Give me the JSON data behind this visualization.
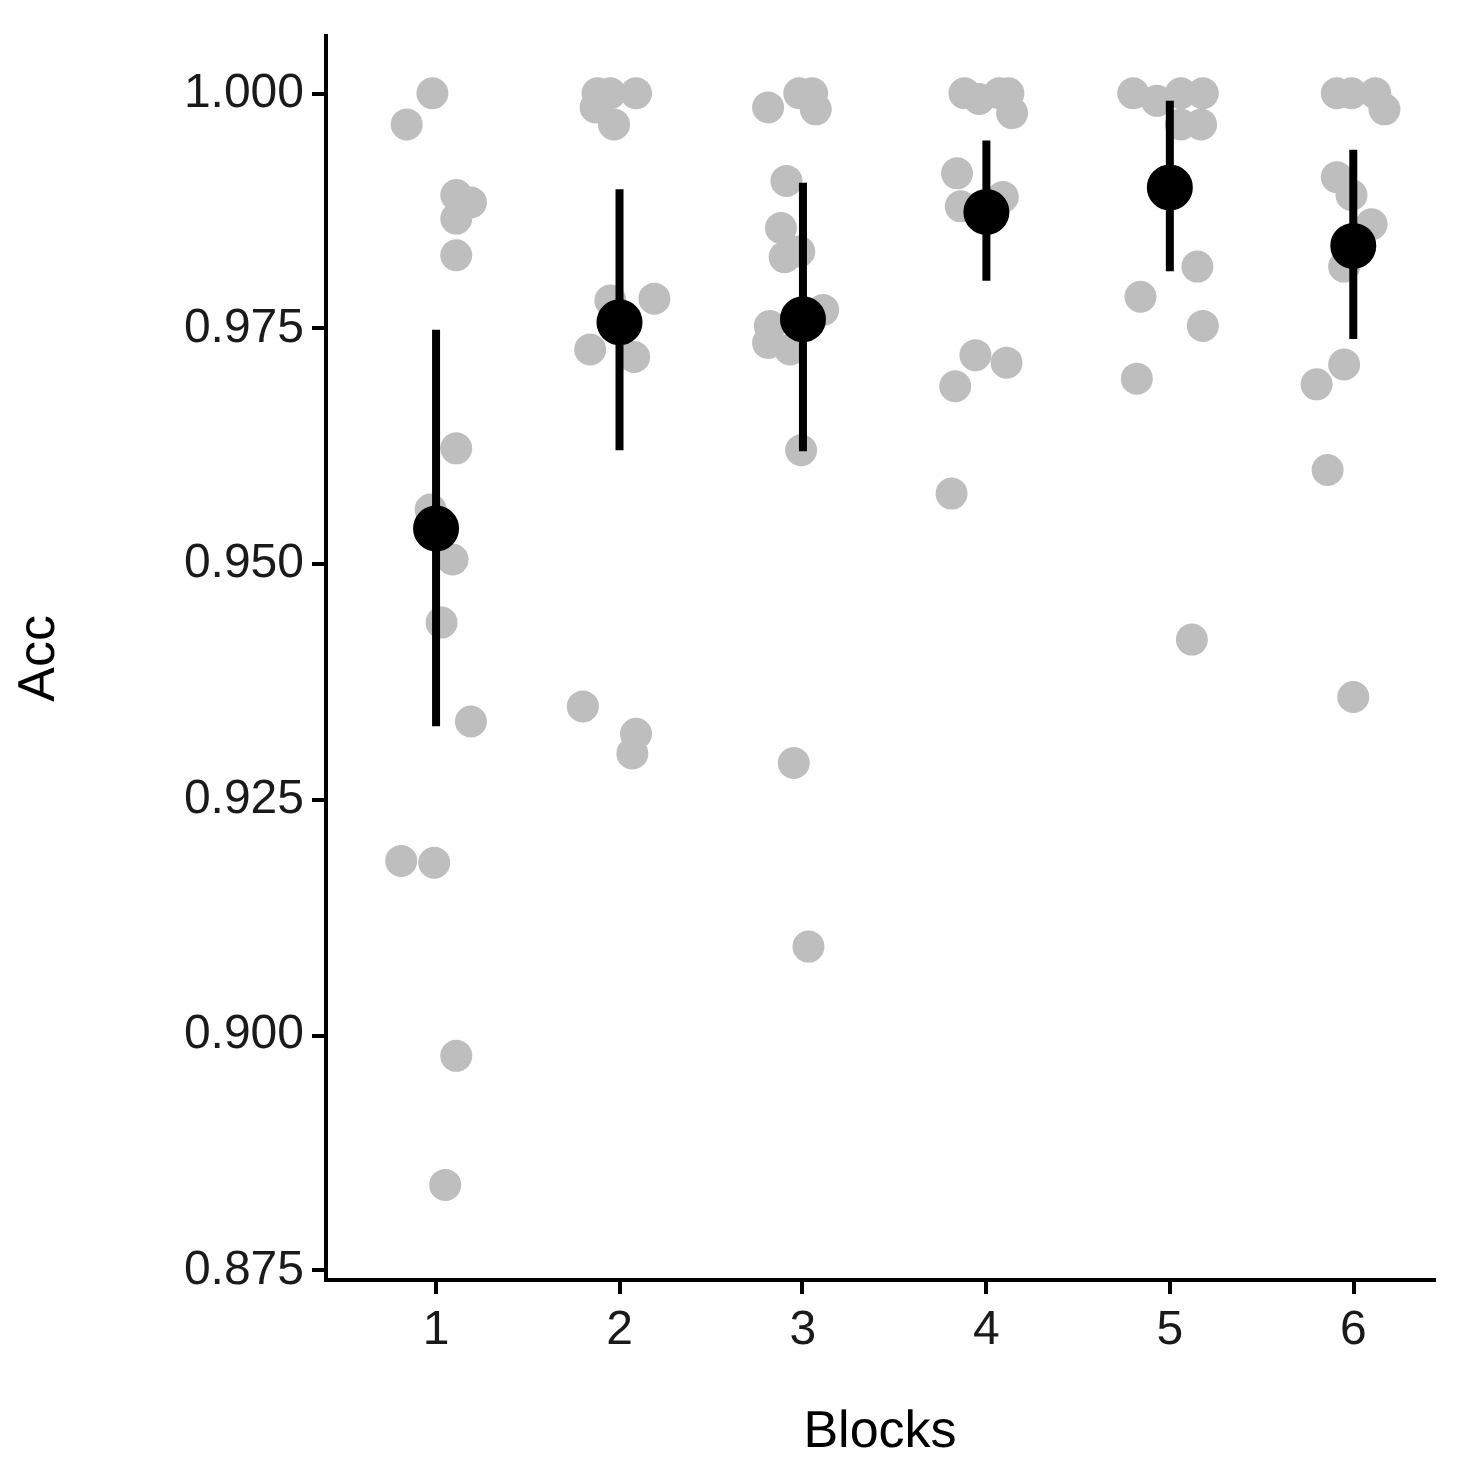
{
  "chart_data": {
    "type": "scatter",
    "xlabel": "Blocks",
    "ylabel": "Acc",
    "xlim": [
      0.4,
      6.44
    ],
    "xticks": [
      1,
      2,
      3,
      4,
      5,
      6
    ],
    "ylim": [
      0.874,
      1.006
    ],
    "yticks": [
      {
        "value": 0.875,
        "label": "0.875"
      },
      {
        "value": 0.9,
        "label": "0.900"
      },
      {
        "value": 0.925,
        "label": "0.925"
      },
      {
        "value": 0.95,
        "label": "0.950"
      },
      {
        "value": 0.975,
        "label": "0.975"
      },
      {
        "value": 1,
        "label": "1.000"
      }
    ],
    "grid": false,
    "legend": false,
    "marker": "circle",
    "series": [
      {
        "color": "#bebebe",
        "x": [
          0.98,
          0.84,
          1.11,
          1.19,
          1.11,
          1.11,
          1.11,
          0.97,
          1.09,
          1.03,
          1.19,
          0.81,
          0.99,
          1.11,
          1.05,
          1.88,
          1.95,
          2.09,
          1.87,
          1.97,
          1.95,
          2.19,
          1.84,
          2.08,
          1.8,
          2.09,
          2.07,
          2.81,
          2.98,
          3.05,
          3.07,
          2.91,
          2.88,
          2.98,
          2.9,
          3.11,
          2.82,
          2.81,
          2.93,
          2.99,
          2.95,
          3.03,
          3.88,
          3.96,
          4.07,
          4.12,
          4.14,
          3.84,
          3.86,
          4.09,
          3.94,
          4.11,
          3.83,
          3.81,
          4.8,
          4.93,
          5.06,
          5.18,
          5.06,
          5.17,
          5.15,
          4.84,
          5.18,
          4.82,
          5.12,
          5.91,
          5.99,
          6.12,
          6.17,
          5.91,
          5.99,
          6.1,
          5.95,
          5.95,
          5.8,
          5.86,
          6.0
        ],
        "values": [
          1.0,
          0.9967,
          0.9892,
          0.9884,
          0.9867,
          0.9828,
          0.9623,
          0.9558,
          0.9505,
          0.9438,
          0.9333,
          0.9185,
          0.9183,
          0.8978,
          0.8841,
          1.0,
          1.0,
          1.0,
          0.9985,
          0.9967,
          0.978,
          0.9782,
          0.9728,
          0.972,
          0.9349,
          0.932,
          0.9299,
          0.9985,
          1.0,
          1.0,
          0.9983,
          0.9907,
          0.9857,
          0.9832,
          0.9826,
          0.977,
          0.9753,
          0.9735,
          0.9728,
          0.9621,
          0.9289,
          0.9094,
          1.0,
          0.9994,
          1.0,
          1.0,
          0.9979,
          0.9915,
          0.988,
          0.989,
          0.9722,
          0.9714,
          0.9689,
          0.9575,
          1.0,
          0.9992,
          1.0,
          1.0,
          0.9967,
          0.9967,
          0.9816,
          0.9784,
          0.9753,
          0.9697,
          0.942,
          1.0,
          1.0,
          1.0,
          0.9983,
          0.9911,
          0.9892,
          0.9861,
          0.9816,
          0.9712,
          0.9691,
          0.96,
          0.9359
        ]
      },
      {
        "color": "#000000",
        "x": [
          1,
          2,
          3,
          4,
          5,
          6
        ],
        "values": [
          0.9538,
          0.9757,
          0.976,
          0.9874,
          0.99,
          0.9838
        ],
        "errors": [
          [
            0.9328,
            0.9749
          ],
          [
            0.9621,
            0.9898
          ],
          [
            0.962,
            0.9905
          ],
          [
            0.9801,
            0.995
          ],
          [
            0.9811,
            0.9992
          ],
          [
            0.9739,
            0.994
          ]
        ]
      }
    ]
  }
}
